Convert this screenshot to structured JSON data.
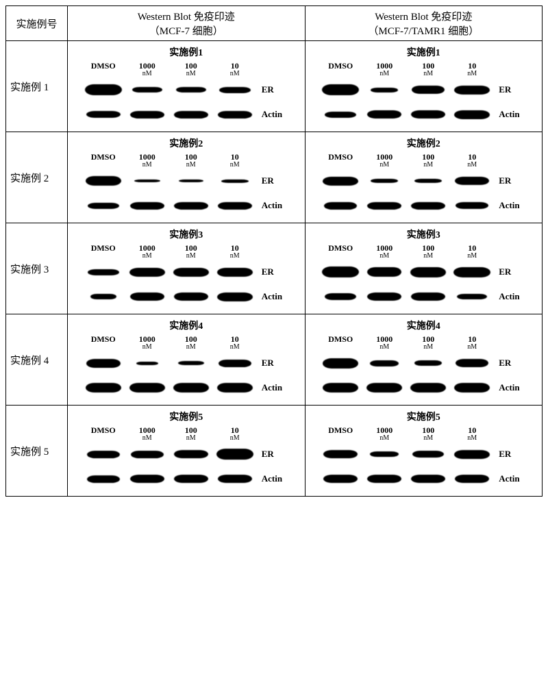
{
  "header": {
    "example_col": "实施例号",
    "col_mcf7_line1": "Western Blot 免疫印迹",
    "col_mcf7_line2": "（MCF-7 细胞）",
    "col_tamr_line1": "Western Blot 免疫印迹",
    "col_tamr_line2": "（MCF-7/TAMR1 细胞）"
  },
  "lanes": {
    "dmso": "DMSO",
    "c1000": "1000",
    "c100": "100",
    "c10": "10",
    "unit": "nM"
  },
  "readouts": {
    "er": "ER",
    "actin": "Actin"
  },
  "band_color": "#000000",
  "cell_bg": "#ffffff",
  "rows": [
    {
      "label": "实施例 1",
      "title": "实施例1",
      "mcf7": {
        "er": [
          {
            "w": 54,
            "h": 16
          },
          {
            "w": 44,
            "h": 8
          },
          {
            "w": 44,
            "h": 8
          },
          {
            "w": 46,
            "h": 9
          }
        ],
        "actin": [
          {
            "w": 50,
            "h": 10
          },
          {
            "w": 50,
            "h": 11
          },
          {
            "w": 50,
            "h": 11
          },
          {
            "w": 50,
            "h": 11
          }
        ]
      },
      "tamr": {
        "er": [
          {
            "w": 54,
            "h": 16
          },
          {
            "w": 40,
            "h": 7
          },
          {
            "w": 48,
            "h": 12
          },
          {
            "w": 52,
            "h": 13
          }
        ],
        "actin": [
          {
            "w": 46,
            "h": 9
          },
          {
            "w": 50,
            "h": 12
          },
          {
            "w": 50,
            "h": 12
          },
          {
            "w": 52,
            "h": 13
          }
        ]
      }
    },
    {
      "label": "实施例 2",
      "title": "实施例2",
      "mcf7": {
        "er": [
          {
            "w": 52,
            "h": 14
          },
          {
            "w": 38,
            "h": 4
          },
          {
            "w": 36,
            "h": 4
          },
          {
            "w": 40,
            "h": 5
          }
        ],
        "actin": [
          {
            "w": 46,
            "h": 9
          },
          {
            "w": 50,
            "h": 11
          },
          {
            "w": 50,
            "h": 11
          },
          {
            "w": 50,
            "h": 11
          }
        ]
      },
      "tamr": {
        "er": [
          {
            "w": 52,
            "h": 13
          },
          {
            "w": 40,
            "h": 6
          },
          {
            "w": 40,
            "h": 6
          },
          {
            "w": 50,
            "h": 12
          }
        ],
        "actin": [
          {
            "w": 48,
            "h": 11
          },
          {
            "w": 50,
            "h": 11
          },
          {
            "w": 50,
            "h": 11
          },
          {
            "w": 48,
            "h": 10
          }
        ]
      }
    },
    {
      "label": "实施例 3",
      "title": "实施例3",
      "mcf7": {
        "er": [
          {
            "w": 46,
            "h": 9
          },
          {
            "w": 52,
            "h": 13
          },
          {
            "w": 52,
            "h": 13
          },
          {
            "w": 52,
            "h": 13
          }
        ],
        "actin": [
          {
            "w": 38,
            "h": 8
          },
          {
            "w": 50,
            "h": 12
          },
          {
            "w": 50,
            "h": 12
          },
          {
            "w": 52,
            "h": 13
          }
        ]
      },
      "tamr": {
        "er": [
          {
            "w": 54,
            "h": 16
          },
          {
            "w": 50,
            "h": 14
          },
          {
            "w": 52,
            "h": 15
          },
          {
            "w": 54,
            "h": 15
          }
        ],
        "actin": [
          {
            "w": 46,
            "h": 10
          },
          {
            "w": 50,
            "h": 12
          },
          {
            "w": 50,
            "h": 12
          },
          {
            "w": 44,
            "h": 8
          }
        ]
      }
    },
    {
      "label": "实施例 4",
      "title": "实施例4",
      "mcf7": {
        "er": [
          {
            "w": 50,
            "h": 13
          },
          {
            "w": 32,
            "h": 5
          },
          {
            "w": 38,
            "h": 6
          },
          {
            "w": 48,
            "h": 11
          }
        ],
        "actin": [
          {
            "w": 52,
            "h": 14
          },
          {
            "w": 52,
            "h": 14
          },
          {
            "w": 52,
            "h": 14
          },
          {
            "w": 52,
            "h": 14
          }
        ]
      },
      "tamr": {
        "er": [
          {
            "w": 52,
            "h": 15
          },
          {
            "w": 42,
            "h": 9
          },
          {
            "w": 40,
            "h": 8
          },
          {
            "w": 48,
            "h": 12
          }
        ],
        "actin": [
          {
            "w": 52,
            "h": 14
          },
          {
            "w": 52,
            "h": 14
          },
          {
            "w": 52,
            "h": 14
          },
          {
            "w": 52,
            "h": 14
          }
        ]
      }
    },
    {
      "label": "实施例 5",
      "title": "实施例5",
      "mcf7": {
        "er": [
          {
            "w": 48,
            "h": 11
          },
          {
            "w": 48,
            "h": 11
          },
          {
            "w": 50,
            "h": 12
          },
          {
            "w": 54,
            "h": 16
          }
        ],
        "actin": [
          {
            "w": 48,
            "h": 11
          },
          {
            "w": 50,
            "h": 12
          },
          {
            "w": 50,
            "h": 12
          },
          {
            "w": 50,
            "h": 12
          }
        ]
      },
      "tamr": {
        "er": [
          {
            "w": 50,
            "h": 12
          },
          {
            "w": 42,
            "h": 8
          },
          {
            "w": 46,
            "h": 10
          },
          {
            "w": 52,
            "h": 13
          }
        ],
        "actin": [
          {
            "w": 50,
            "h": 12
          },
          {
            "w": 50,
            "h": 12
          },
          {
            "w": 50,
            "h": 12
          },
          {
            "w": 50,
            "h": 12
          }
        ]
      }
    }
  ]
}
